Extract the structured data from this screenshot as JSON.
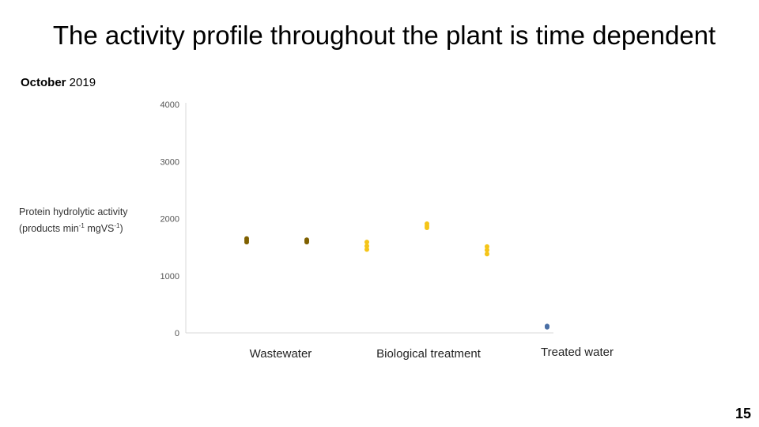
{
  "slide": {
    "title": "The activity profile throughout the plant is time dependent",
    "subtitle_bold": "October",
    "subtitle_rest": " 2019",
    "page_number": "15"
  },
  "chart_data": {
    "type": "scatter",
    "ylabel_line1": "Protein hydrolytic activity",
    "ylabel_line2_pre": "(products min",
    "ylabel_sup1": "-1",
    "ylabel_mid": " mgVS",
    "ylabel_sup2": "-1",
    "ylabel_post": ")",
    "ylim": [
      0,
      4000
    ],
    "yticks": [
      "0",
      "1000",
      "2000",
      "3000",
      "4000"
    ],
    "categories": [
      "Wastewater",
      "Biological treatment",
      "Treated water"
    ],
    "grid": false,
    "legend": "none",
    "colors": {
      "wastewater": "#7f6000",
      "biological": "#f5c518",
      "treated": "#4a6fa5"
    },
    "points": [
      {
        "x": 1,
        "y": [
          1650,
          1620,
          1590
        ],
        "color": "#7f6000"
      },
      {
        "x": 2,
        "y": [
          1630,
          1610,
          1590
        ],
        "color": "#7f6000"
      },
      {
        "x": 3,
        "y": [
          1590,
          1520,
          1460
        ],
        "color": "#f5c518"
      },
      {
        "x": 4,
        "y": [
          1910,
          1870,
          1840
        ],
        "color": "#f5c518"
      },
      {
        "x": 5,
        "y": [
          1510,
          1450,
          1380
        ],
        "color": "#f5c518"
      },
      {
        "x": 6,
        "y": [
          120,
          110,
          100
        ],
        "color": "#4a6fa5"
      }
    ]
  }
}
